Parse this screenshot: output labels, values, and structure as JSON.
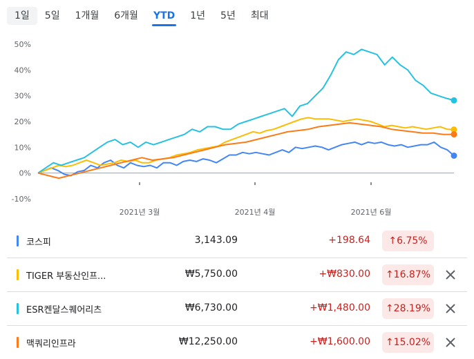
{
  "tabs": [
    {
      "label": "1일"
    },
    {
      "label": "5일"
    },
    {
      "label": "1개월"
    },
    {
      "label": "6개월"
    },
    {
      "label": "YTD"
    },
    {
      "label": "1년"
    },
    {
      "label": "5년"
    },
    {
      "label": "최대"
    }
  ],
  "active_tab": "YTD",
  "chart_data": {
    "type": "line",
    "y_ticks": [
      "50%",
      "40%",
      "30%",
      "20%",
      "10%",
      "0%",
      "-10%"
    ],
    "ylim": [
      -10,
      50
    ],
    "x_ticks": [
      "2021년 3월",
      "2021년 4월",
      "2021년 6월"
    ],
    "series": [
      {
        "name": "코스피",
        "color": "#4285f4",
        "values": [
          0,
          1,
          2,
          1,
          -0.5,
          -1,
          0.5,
          1,
          3,
          2,
          4,
          5,
          3,
          2,
          4,
          3,
          2.5,
          3,
          2,
          4,
          4,
          3,
          4.5,
          5,
          4.5,
          5.5,
          5,
          4,
          5.5,
          7,
          7,
          8,
          7.5,
          8,
          7.5,
          7,
          8,
          9,
          8,
          10,
          9.5,
          10,
          10.5,
          10,
          9,
          10,
          11,
          11.5,
          12,
          11,
          12,
          11.5,
          12,
          11,
          10.5,
          11,
          10,
          10.5,
          11,
          11,
          12,
          10,
          9,
          6.75
        ]
      },
      {
        "name": "TIGER 부동산인프...",
        "color": "#fbbc04",
        "values": [
          0,
          1,
          2,
          3,
          2.5,
          3,
          4,
          5,
          4,
          3,
          3.5,
          4,
          5,
          4.5,
          5,
          4,
          4,
          5,
          5.5,
          6,
          7,
          7.5,
          8,
          9,
          9.5,
          10,
          10.5,
          12,
          13,
          14,
          15,
          16,
          15.5,
          16.5,
          17,
          18,
          19,
          20,
          21,
          21.5,
          21,
          21,
          21,
          20.5,
          20,
          20.5,
          21,
          20.5,
          20,
          19,
          18,
          18.5,
          18,
          17.5,
          18,
          17.5,
          17,
          17.5,
          18,
          17,
          16.87
        ]
      },
      {
        "name": "ESR켄달스퀘어리츠",
        "color": "#24c1e0",
        "values": [
          0,
          2,
          4,
          3,
          4,
          5,
          6,
          8,
          10,
          12,
          13,
          11,
          12,
          10,
          12,
          11,
          12,
          13,
          14,
          15,
          17,
          16,
          18,
          18,
          17,
          17,
          19,
          20,
          21,
          22,
          23,
          24,
          25,
          22,
          26,
          27,
          30,
          33,
          38,
          44,
          47,
          46,
          48,
          47,
          46,
          42,
          45,
          42,
          40,
          36,
          34,
          31,
          30,
          29,
          28.19
        ]
      },
      {
        "name": "맥쿼리인프라",
        "color": "#fa7b17",
        "values": [
          0,
          -1,
          -2,
          -1,
          0,
          1,
          2,
          3,
          4,
          5,
          6,
          5,
          5.5,
          6,
          7,
          8,
          9,
          10,
          11,
          11.5,
          12,
          13,
          14,
          15,
          16,
          16.5,
          17,
          18,
          18.5,
          19,
          19.5,
          19,
          18.5,
          18,
          17,
          16.5,
          16,
          15.5,
          15.5,
          15,
          15.02
        ]
      }
    ],
    "end_labels_visible": false
  },
  "rows": [
    {
      "name": "코스피",
      "price": "3,143.09",
      "change": "+198.64",
      "percent": "↑6.75%",
      "removable": false
    },
    {
      "name": "TIGER 부동산인프...",
      "price": "₩5,750.00",
      "change": "+₩830.00",
      "percent": "↑16.87%",
      "removable": true
    },
    {
      "name": "ESR켄달스퀘어리츠",
      "price": "₩6,730.00",
      "change": "+₩1,480.00",
      "percent": "↑28.19%",
      "removable": true
    },
    {
      "name": "맥쿼리인프라",
      "price": "₩12,250.00",
      "change": "+₩1,600.00",
      "percent": "↑15.02%",
      "removable": true
    }
  ],
  "icons": {
    "close": "close-icon"
  }
}
